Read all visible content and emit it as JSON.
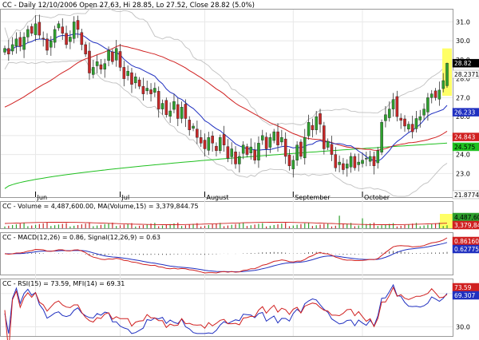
{
  "colors": {
    "up": "#2ea02e",
    "down": "#c62828",
    "bb": "#c0c0c0",
    "ma_short": "#2030c0",
    "ma_mid": "#d02020",
    "ma_long": "#20c020",
    "macd": "#2030c0",
    "signal": "#d02020",
    "rsi": "#d02020",
    "mfi": "#2030c0",
    "highlight": "#ffff66",
    "price_tag": "#000000",
    "grid": "#e8e8e8"
  },
  "chart_data": {
    "type": "candlestick",
    "title": "CC - Daily 12/10/2006 Open 27.63, Hi 28.85, Lo 27.52, Close 28.82 (5.0%)",
    "month_labels": [
      {
        "label": "Jun",
        "index": 8
      },
      {
        "label": "Jul",
        "index": 30
      },
      {
        "label": "August",
        "index": 52
      },
      {
        "label": "September",
        "index": 75
      },
      {
        "label": "October",
        "index": 93
      }
    ],
    "price_axis": {
      "ylim": [
        21.75,
        31.65
      ],
      "ticks": [
        "31.0",
        "30.0",
        "29.0",
        "28.0",
        "27.0",
        "26.0",
        "25.0",
        "24.0",
        "23.0"
      ],
      "tick_values": [
        31,
        30,
        29,
        28,
        27,
        26,
        25,
        24,
        23
      ],
      "tags": [
        {
          "label": "28.82",
          "value": 28.82,
          "color": "#000000",
          "text_color": "#ffffff"
        },
        {
          "label": "28.2371",
          "value": 28.2371,
          "color": "#ffffff",
          "text_color": "#000000"
        },
        {
          "label": "26.233",
          "value": 26.233,
          "color": "#2030c0",
          "text_color": "#ffffff"
        },
        {
          "label": "24.843",
          "value": 24.843,
          "color": "#d02020",
          "text_color": "#ffffff"
        },
        {
          "label": "24.575",
          "value": 24.575,
          "color": "#20c020",
          "text_color": "#000000"
        },
        {
          "label": "21.8774",
          "value": 21.8774,
          "color": "#ffffff",
          "text_color": "#000000"
        }
      ]
    },
    "volume_panel": {
      "label": "CC - Volume = 4,487,600.00, MA(Volume,15) = 3,379,844.75",
      "tags": [
        {
          "label": "4,487,600",
          "color": "#2ea02e",
          "text_color": "#000000"
        },
        {
          "label": "3,379,844",
          "color": "#d02020",
          "text_color": "#ffffff"
        }
      ]
    },
    "macd_panel": {
      "label": "CC - MACD(12,26) = 0.86, Signal(12,26,9) = 0.63",
      "tags": [
        {
          "label": "0.861604",
          "color": "#d02020",
          "text_color": "#ffffff"
        },
        {
          "label": "0.627756",
          "color": "#2030c0",
          "text_color": "#ffffff"
        }
      ]
    },
    "rsi_panel": {
      "label": "CC - RSI(15) = 73.59, MFI(14) = 69.31",
      "ylim": [
        20,
        85
      ],
      "ticks": [
        "70.0",
        "30.0"
      ],
      "tick_values": [
        70,
        30
      ],
      "tags": [
        {
          "label": "73.59",
          "color": "#d02020",
          "text_color": "#ffffff"
        },
        {
          "label": "69.307",
          "color": "#2030c0",
          "text_color": "#ffffff"
        }
      ]
    },
    "close": [
      29.6,
      29.3,
      29.8,
      30.1,
      29.7,
      30.2,
      30.6,
      30.4,
      30.9,
      30.3,
      30.1,
      29.5,
      30.0,
      30.6,
      30.9,
      30.4,
      29.8,
      30.2,
      31.0,
      30.6,
      29.8,
      29.3,
      28.3,
      28.6,
      28.9,
      28.5,
      28.8,
      29.5,
      28.9,
      29.6,
      28.6,
      28.0,
      28.4,
      27.7,
      28.1,
      27.6,
      27.2,
      27.5,
      27.2,
      27.5,
      26.4,
      26.7,
      26.1,
      26.3,
      26.8,
      25.9,
      26.5,
      25.9,
      25.3,
      25.5,
      24.9,
      24.6,
      24.3,
      24.9,
      24.6,
      24.2,
      24.9,
      24.5,
      23.8,
      24.3,
      23.5,
      23.9,
      24.5,
      24.0,
      24.4,
      23.7,
      24.6,
      25.0,
      24.3,
      24.9,
      25.2,
      24.5,
      24.9,
      23.9,
      23.4,
      23.7,
      24.5,
      23.9,
      24.9,
      25.7,
      25.3,
      26.0,
      25.6,
      24.3,
      24.7,
      24.0,
      23.3,
      23.6,
      23.2,
      23.5,
      23.9,
      23.3,
      23.6,
      23.7,
      23.8,
      23.9,
      23.4,
      24.2,
      25.7,
      26.1,
      26.4,
      26.9,
      26.0,
      25.8,
      25.5,
      25.6,
      25.2,
      25.9,
      26.0,
      26.4,
      27.0,
      27.2,
      27.0,
      27.4,
      27.9,
      28.82
    ]
  }
}
